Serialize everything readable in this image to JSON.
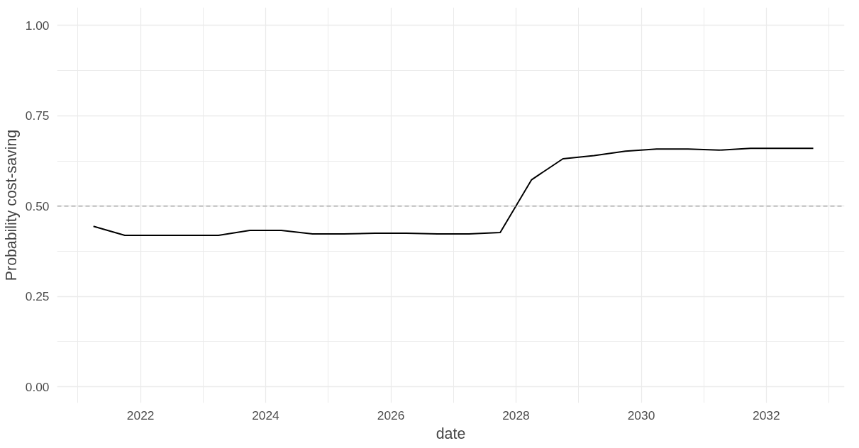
{
  "chart_data": {
    "type": "line",
    "xlabel": "date",
    "ylabel": "Probability cost-saving",
    "x": [
      "2021-04",
      "2021-10",
      "2022-04",
      "2022-10",
      "2023-04",
      "2023-10",
      "2024-04",
      "2024-10",
      "2025-04",
      "2025-10",
      "2026-04",
      "2026-10",
      "2027-04",
      "2027-10",
      "2028-04",
      "2028-10",
      "2029-04",
      "2029-10",
      "2030-04",
      "2030-10",
      "2031-04",
      "2031-10",
      "2032-04",
      "2032-10"
    ],
    "series": [
      {
        "color": "#000000",
        "values": [
          0.444,
          0.419,
          0.419,
          0.419,
          0.419,
          0.433,
          0.433,
          0.423,
          0.423,
          0.425,
          0.425,
          0.423,
          0.423,
          0.427,
          0.573,
          0.631,
          0.64,
          0.652,
          0.658,
          0.658,
          0.655,
          0.66,
          0.66,
          0.66
        ]
      }
    ],
    "xlim": [
      "2020-09",
      "2033-04"
    ],
    "xticks": [
      "2022",
      "2024",
      "2026",
      "2028",
      "2030",
      "2032"
    ],
    "ylim": [
      -0.045,
      1.05
    ],
    "yticks": [
      {
        "value": 0,
        "label": "0.00"
      },
      {
        "value": 0.25,
        "label": "0.25"
      },
      {
        "value": 0.5,
        "label": "0.50"
      },
      {
        "value": 0.75,
        "label": "0.75"
      },
      {
        "value": 1,
        "label": "1.00"
      }
    ],
    "ref_lines": [
      {
        "axis": "y",
        "value": 0.5,
        "color": "#bebebe",
        "line_style": "dashed"
      }
    ],
    "grid": true,
    "marker": "none",
    "line_style": "solid"
  }
}
